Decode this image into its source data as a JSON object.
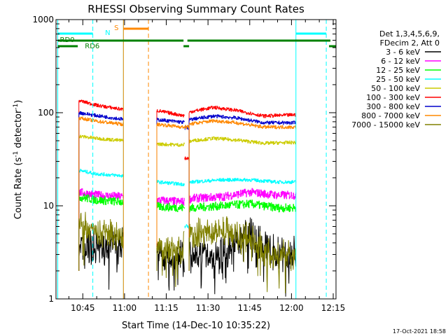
{
  "chart_data": {
    "type": "line",
    "title": "RHESSI Observing Summary Count Rates",
    "xlabel": "Start Time (14-Dec-10 10:35:22)",
    "ylabel_prefix": "Count Rate (s",
    "ylabel_sup1": "-1",
    "ylabel_mid": " detector",
    "ylabel_sup2": "-1",
    "ylabel_suffix": ")",
    "yscale": "log",
    "ylim": [
      1,
      1000
    ],
    "xlim_min": [
      35.37,
      136.0
    ],
    "x_ticks": [
      {
        "value": 45,
        "label": "10:45"
      },
      {
        "value": 60,
        "label": "11:00"
      },
      {
        "value": 75,
        "label": "11:15"
      },
      {
        "value": 90,
        "label": "11:30"
      },
      {
        "value": 105,
        "label": "11:45"
      },
      {
        "value": 120,
        "label": "12:00"
      },
      {
        "value": 135,
        "label": "12:15"
      }
    ],
    "y_ticks": [
      {
        "value": 1,
        "label": "1"
      },
      {
        "value": 10,
        "label": "10"
      },
      {
        "value": 100,
        "label": "100"
      },
      {
        "value": 1000,
        "label": "1000"
      }
    ],
    "legend": {
      "position": "right",
      "header": [
        "Det 1,3,4,5,6,9,",
        "FDecim 2, Att 0"
      ],
      "entries": [
        {
          "label": "3 - 6 keV",
          "color": "#000000"
        },
        {
          "label": "6 - 12 keV",
          "color": "#ff00ff"
        },
        {
          "label": "12 - 25 keV",
          "color": "#00ff00"
        },
        {
          "label": "25 - 50 keV",
          "color": "#00ffff"
        },
        {
          "label": "50 - 100 keV",
          "color": "#cccc00"
        },
        {
          "label": "100 - 300 keV",
          "color": "#ff0000"
        },
        {
          "label": "300 - 800 keV",
          "color": "#0000cc"
        },
        {
          "label": "800 - 7000 keV",
          "color": "#ff8800"
        },
        {
          "label": "7000 - 15000 keV",
          "color": "#808000"
        }
      ]
    },
    "segments": [
      [
        43.6,
        59.6
      ],
      [
        71.6,
        81.6
      ],
      [
        83.2,
        121.6
      ]
    ],
    "series": [
      {
        "name": "3 - 6 keV",
        "color": "#000000",
        "points": [
          [
            43.6,
            3.5
          ],
          [
            59.5,
            3.8
          ],
          [
            72,
            3.5
          ],
          [
            76,
            2.5
          ],
          [
            81,
            3.0
          ],
          [
            84,
            3.0
          ],
          [
            95,
            3.0
          ],
          [
            100,
            4.0
          ],
          [
            104,
            5.0
          ],
          [
            110,
            3.5
          ],
          [
            116,
            3.0
          ],
          [
            121.5,
            3.0
          ]
        ]
      },
      {
        "name": "6 - 12 keV",
        "color": "#ff00ff",
        "points": [
          [
            43.6,
            14
          ],
          [
            50,
            13
          ],
          [
            59.5,
            12.5
          ],
          [
            72,
            11.5
          ],
          [
            81,
            11
          ],
          [
            84,
            12
          ],
          [
            95,
            12.5
          ],
          [
            105,
            14
          ],
          [
            115,
            13
          ],
          [
            121.5,
            13
          ]
        ]
      },
      {
        "name": "12 - 25 keV",
        "color": "#00ff00",
        "points": [
          [
            43.6,
            12.5
          ],
          [
            50,
            11.5
          ],
          [
            59.5,
            11
          ],
          [
            72,
            9.8
          ],
          [
            81,
            9.5
          ],
          [
            84,
            9.5
          ],
          [
            95,
            10
          ],
          [
            105,
            10.5
          ],
          [
            115,
            9.5
          ],
          [
            121.5,
            9.5
          ]
        ]
      },
      {
        "name": "25 - 50 keV",
        "color": "#00ffff",
        "points": [
          [
            43.6,
            24
          ],
          [
            50,
            22
          ],
          [
            59.5,
            21
          ],
          [
            72,
            18
          ],
          [
            81,
            17
          ],
          [
            84,
            18
          ],
          [
            95,
            19
          ],
          [
            105,
            19
          ],
          [
            115,
            18
          ],
          [
            121.5,
            18
          ]
        ]
      },
      {
        "name": "50 - 100 keV",
        "color": "#cccc00",
        "points": [
          [
            43.6,
            56
          ],
          [
            50,
            53
          ],
          [
            59.5,
            50
          ],
          [
            72,
            46
          ],
          [
            81,
            45
          ],
          [
            84,
            50
          ],
          [
            92,
            53
          ],
          [
            100,
            51
          ],
          [
            110,
            47
          ],
          [
            121.5,
            48
          ]
        ]
      },
      {
        "name": "100 - 300 keV",
        "color": "#ff0000",
        "points": [
          [
            43.6,
            135
          ],
          [
            50,
            120
          ],
          [
            59.5,
            108
          ],
          [
            72,
            105
          ],
          [
            81,
            93
          ],
          [
            84,
            103
          ],
          [
            92,
            114
          ],
          [
            100,
            106
          ],
          [
            110,
            92
          ],
          [
            121.5,
            95
          ]
        ]
      },
      {
        "name": "300 - 800 keV",
        "color": "#0000cc",
        "points": [
          [
            43.6,
            100
          ],
          [
            50,
            93
          ],
          [
            59.5,
            85
          ],
          [
            72,
            84
          ],
          [
            81,
            79
          ],
          [
            84,
            85
          ],
          [
            92,
            92
          ],
          [
            100,
            88
          ],
          [
            110,
            78
          ],
          [
            121.5,
            78
          ]
        ]
      },
      {
        "name": "800 - 7000 keV",
        "color": "#ff8800",
        "points": [
          [
            43.6,
            88
          ],
          [
            50,
            81
          ],
          [
            59.5,
            75
          ],
          [
            72,
            75
          ],
          [
            81,
            70
          ],
          [
            84,
            76
          ],
          [
            92,
            82
          ],
          [
            100,
            78
          ],
          [
            110,
            70
          ],
          [
            121.5,
            70
          ]
        ]
      },
      {
        "name": "7000 - 15000 keV",
        "color": "#808000",
        "points": [
          [
            43.6,
            6.5
          ],
          [
            50,
            5.0
          ],
          [
            59.5,
            4.8
          ],
          [
            72,
            3.5
          ],
          [
            81,
            3.5
          ],
          [
            84,
            5.0
          ],
          [
            95,
            5.5
          ],
          [
            105,
            4.5
          ],
          [
            112,
            3.0
          ],
          [
            121.5,
            3.0
          ]
        ]
      }
    ],
    "attenuator_dip": {
      "x": [
        81.6,
        83.2
      ],
      "red": 32,
      "blue": 70,
      "orange": 70,
      "cyan": 6.0
    },
    "annotations": [
      {
        "label": "N",
        "color": "#00ffff",
        "x": 52
      },
      {
        "label": "S",
        "color": "#ff8800",
        "x": 58.8
      },
      {
        "label": "RD0",
        "color": "#008000",
        "x": 36
      },
      {
        "label": "RD6",
        "color": "#008000",
        "x": 45
      }
    ],
    "markers": {
      "cyan_solid_x": [
        36.0,
        59.6,
        121.6
      ],
      "cyan_dash_x": [
        48.6,
        132.5
      ],
      "orange_solid_x": [
        59.6
      ],
      "orange_dash_x": [
        68.6
      ],
      "cyan_top_bars": [
        [
          36.0,
          48.6
        ],
        [
          121.6,
          132.5
        ]
      ],
      "orange_top_bar": [
        59.6,
        68.6
      ],
      "green_top_bars": [
        [
          36.0,
          81.2
        ],
        [
          82.6,
          134.0
        ]
      ],
      "green_mid_bars": [
        [
          36.0,
          43.2
        ],
        [
          81.2,
          83.2
        ],
        [
          133.5,
          136.0
        ]
      ]
    },
    "footer": "17-Oct-2021 18:58"
  }
}
